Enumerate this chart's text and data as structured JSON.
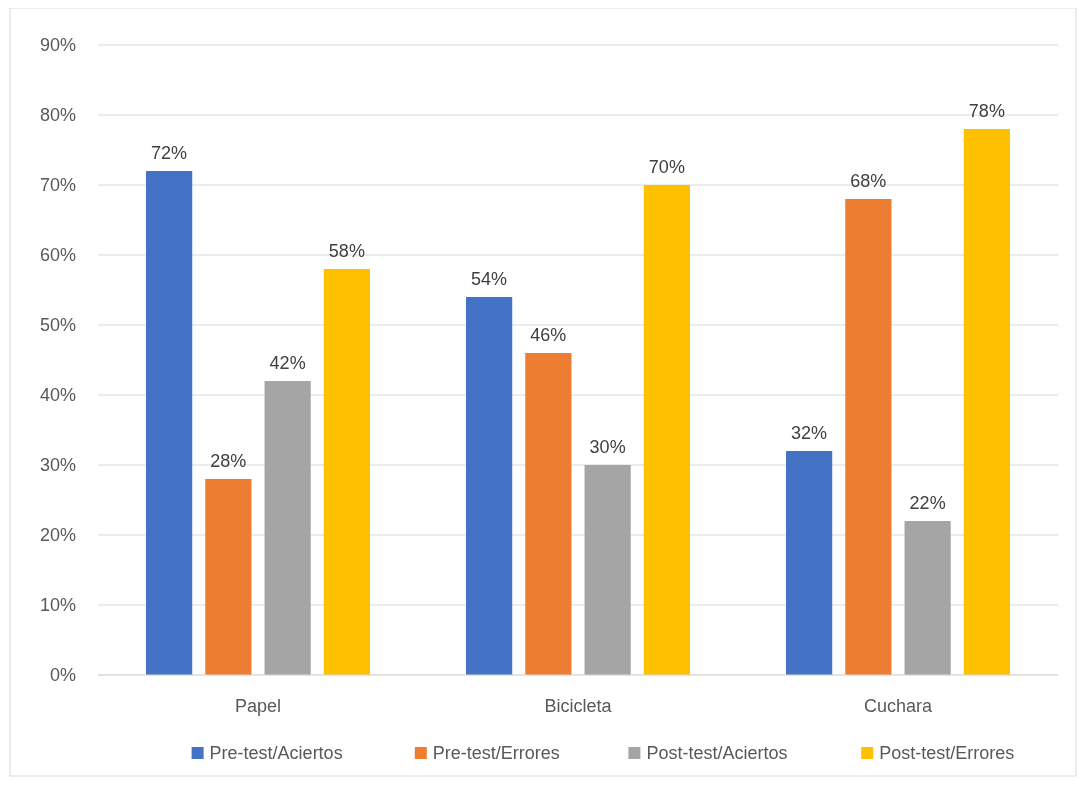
{
  "chart_data": {
    "type": "bar",
    "categories": [
      "Papel",
      "Bicicleta",
      "Cuchara"
    ],
    "series": [
      {
        "name": "Pre-test/Aciertos",
        "color": "#4472c4",
        "values": [
          72,
          54,
          32
        ],
        "value_labels": [
          "72%",
          "54%",
          "32%"
        ]
      },
      {
        "name": "Pre-test/Errores",
        "color": "#ed7d31",
        "values": [
          28,
          46,
          68
        ],
        "value_labels": [
          "28%",
          "46%",
          "68%"
        ]
      },
      {
        "name": "Post-test/Aciertos",
        "color": "#a5a5a5",
        "values": [
          42,
          30,
          22
        ],
        "value_labels": [
          "42%",
          "30%",
          "22%"
        ]
      },
      {
        "name": "Post-test/Errores",
        "color": "#ffc000",
        "values": [
          58,
          70,
          78
        ],
        "value_labels": [
          "58%",
          "70%",
          "78%"
        ]
      }
    ],
    "ylim": [
      0,
      90
    ],
    "yticks": [
      {
        "value": 0,
        "label": "0%"
      },
      {
        "value": 10,
        "label": "10%"
      },
      {
        "value": 20,
        "label": "20%"
      },
      {
        "value": 30,
        "label": "30%"
      },
      {
        "value": 40,
        "label": "40%"
      },
      {
        "value": 50,
        "label": "50%"
      },
      {
        "value": 60,
        "label": "60%"
      },
      {
        "value": 70,
        "label": "70%"
      },
      {
        "value": 80,
        "label": "80%"
      },
      {
        "value": 90,
        "label": "90%"
      }
    ],
    "grid": "y",
    "legend": "bottom"
  }
}
